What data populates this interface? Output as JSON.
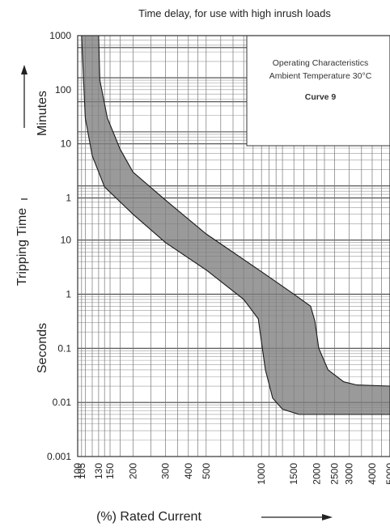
{
  "chart_data": {
    "type": "area",
    "title": "Time delay, for use with high inrush loads",
    "xlabel": "(%) Rated Current",
    "ylabel": "Tripping Time",
    "x_scale": "log",
    "x_ticks": [
      {
        "value": 100,
        "label": "100"
      },
      {
        "value": 105,
        "label": "105"
      },
      {
        "value": 130,
        "label": "130"
      },
      {
        "value": 150,
        "label": "150"
      },
      {
        "value": 200,
        "label": "200"
      },
      {
        "value": 300,
        "label": "300"
      },
      {
        "value": 400,
        "label": "400"
      },
      {
        "value": 500,
        "label": "500"
      },
      {
        "value": 1000,
        "label": "1000"
      },
      {
        "value": 1500,
        "label": "1500"
      },
      {
        "value": 2000,
        "label": "2000"
      },
      {
        "value": 2500,
        "label": "2500"
      },
      {
        "value": 3000,
        "label": "3000"
      },
      {
        "value": 4000,
        "label": "4000"
      },
      {
        "value": 5000,
        "label": "5000"
      }
    ],
    "y_scale": "log",
    "y_sections": [
      {
        "label": "Minutes",
        "unit": "minutes",
        "ticks": [
          "1000",
          "100",
          "10",
          "1"
        ]
      },
      {
        "label": "Seconds",
        "unit": "seconds",
        "ticks": [
          "10",
          "1",
          "0.1",
          "0.01",
          "0.001"
        ]
      }
    ],
    "y_range_seconds": [
      0.001,
      60000
    ],
    "grid": true,
    "info_box": {
      "line1": "Operating Characteristics",
      "line2": "Ambient Temperature 30°C",
      "line3": "Curve 9"
    },
    "band": {
      "upper": [
        {
          "x": 130,
          "y": 60000
        },
        {
          "x": 132,
          "y": 9000
        },
        {
          "x": 145,
          "y": 1800
        },
        {
          "x": 170,
          "y": 480
        },
        {
          "x": 200,
          "y": 180
        },
        {
          "x": 300,
          "y": 55
        },
        {
          "x": 500,
          "y": 13
        },
        {
          "x": 1000,
          "y": 2.6
        },
        {
          "x": 1500,
          "y": 1.0
        },
        {
          "x": 1850,
          "y": 0.6
        },
        {
          "x": 1950,
          "y": 0.32
        },
        {
          "x": 2050,
          "y": 0.1
        },
        {
          "x": 2300,
          "y": 0.04
        },
        {
          "x": 2800,
          "y": 0.024
        },
        {
          "x": 3300,
          "y": 0.021
        },
        {
          "x": 5000,
          "y": 0.02
        }
      ],
      "lower": [
        {
          "x": 105,
          "y": 60000
        },
        {
          "x": 110,
          "y": 1800
        },
        {
          "x": 120,
          "y": 360
        },
        {
          "x": 140,
          "y": 96
        },
        {
          "x": 200,
          "y": 30
        },
        {
          "x": 300,
          "y": 9
        },
        {
          "x": 500,
          "y": 2.8
        },
        {
          "x": 800,
          "y": 0.8
        },
        {
          "x": 960,
          "y": 0.35
        },
        {
          "x": 1000,
          "y": 0.13
        },
        {
          "x": 1050,
          "y": 0.04
        },
        {
          "x": 1150,
          "y": 0.012
        },
        {
          "x": 1300,
          "y": 0.0075
        },
        {
          "x": 1600,
          "y": 0.006
        },
        {
          "x": 5000,
          "y": 0.006
        }
      ]
    }
  }
}
